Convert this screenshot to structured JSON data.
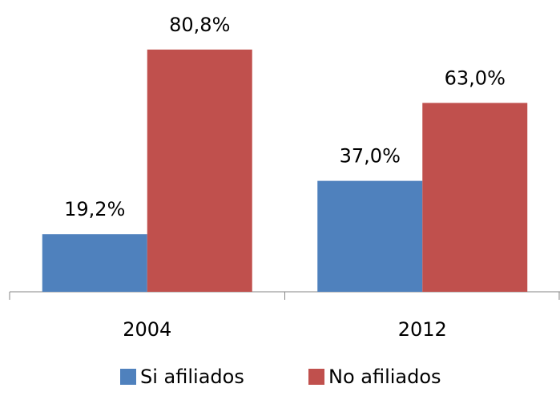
{
  "chart_data": {
    "type": "bar",
    "categories": [
      "2004",
      "2012"
    ],
    "series": [
      {
        "name": "Si afiliados",
        "color": "#4f81bd",
        "values": [
          19.2,
          37.0
        ],
        "value_labels": [
          "19,2%",
          "37,0%"
        ]
      },
      {
        "name": "No afiliados",
        "color": "#c0504d",
        "values": [
          80.8,
          63.0
        ],
        "value_labels": [
          "80,8%",
          "63,0%"
        ]
      }
    ]
  }
}
